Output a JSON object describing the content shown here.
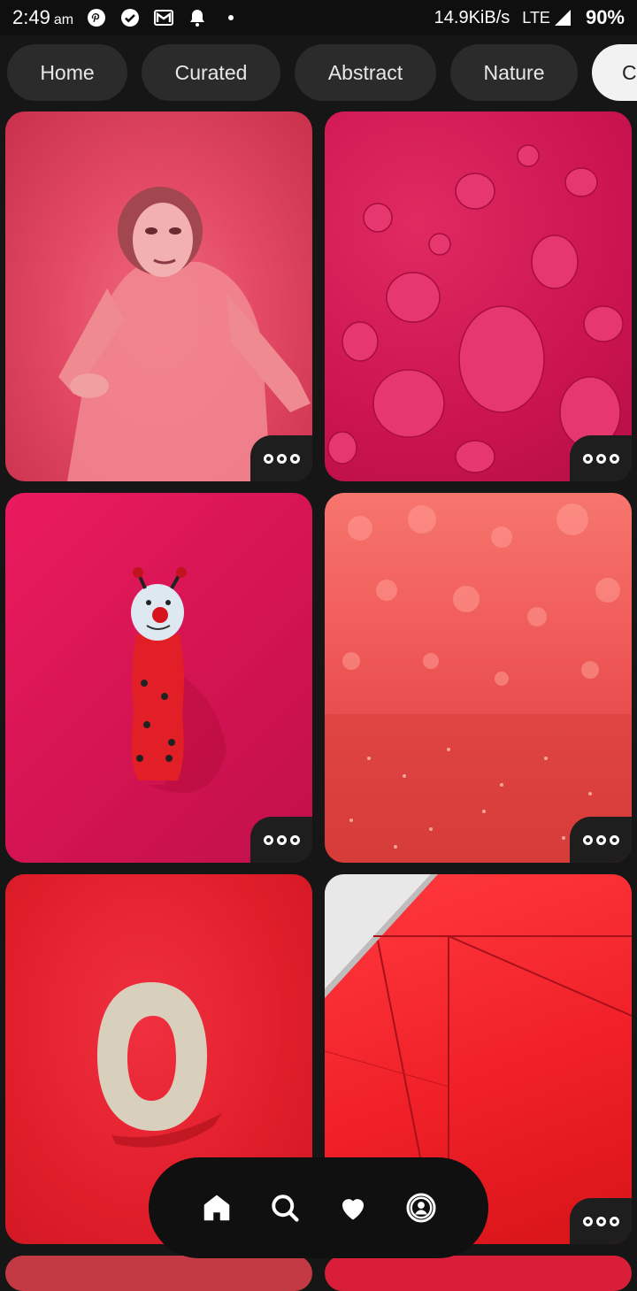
{
  "status_bar": {
    "time": "2:49",
    "ampm": "am",
    "network_speed": "14.9KiB/s",
    "network_type": "LTE",
    "battery": "90%"
  },
  "tabs": [
    {
      "label": "Home",
      "active": false
    },
    {
      "label": "Curated",
      "active": false
    },
    {
      "label": "Abstract",
      "active": false
    },
    {
      "label": "Nature",
      "active": false
    },
    {
      "label": "C",
      "active": true
    }
  ],
  "wallpapers": [
    {
      "subject": "person in mask on pink background"
    },
    {
      "subject": "water droplets on magenta"
    },
    {
      "subject": "ladybug toy on pink wall"
    },
    {
      "subject": "red glitter bokeh"
    },
    {
      "subject": "wooden letter O on red"
    },
    {
      "subject": "red geometric wall panels"
    }
  ],
  "icons": {
    "nav": [
      "home-icon",
      "search-icon",
      "heart-icon",
      "profile-icon"
    ],
    "more": "more-icon"
  },
  "colors": {
    "background": "#161616",
    "tab_inactive": "#2b2b2b",
    "tab_active": "#f2f2f2",
    "nav_bar": "#101010"
  }
}
